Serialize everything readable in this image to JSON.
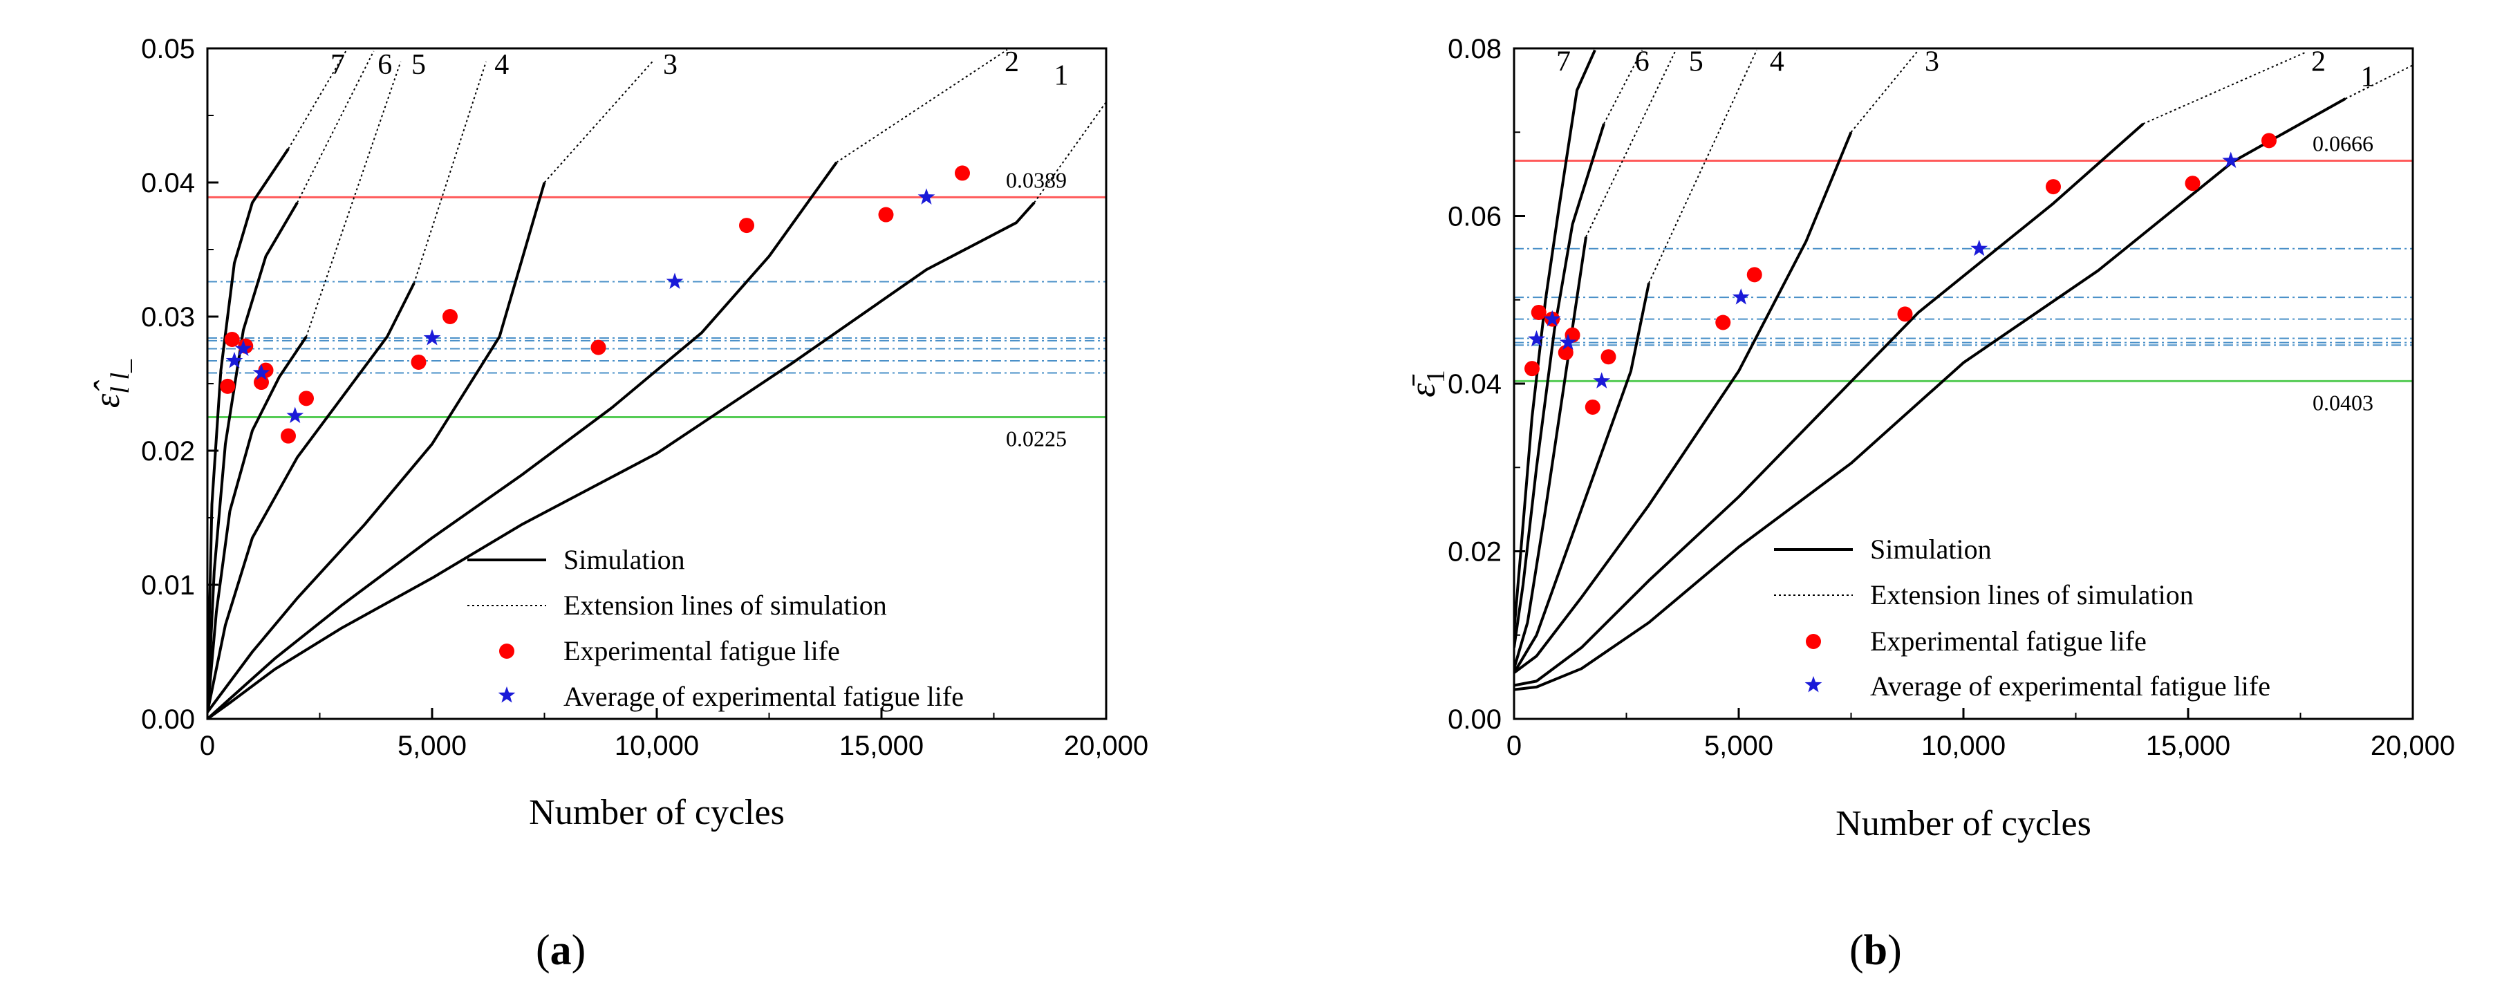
{
  "chart_data": [
    {
      "type": "line",
      "panel_label": "a",
      "xlabel": "Number of cycles",
      "ylabel_glyph": "ε̂",
      "ylabel_sub": "l l_",
      "xlim": [
        0,
        20000
      ],
      "ylim": [
        0,
        0.05
      ],
      "xticks": [
        "0",
        "5,000",
        "10,000",
        "15,000",
        "20,000"
      ],
      "yticks": [
        "0.00",
        "0.01",
        "0.02",
        "0.03",
        "0.04",
        "0.05"
      ],
      "legend": {
        "position": "bottom-right",
        "entries": [
          "Simulation",
          "Extension lines of simulation",
          "Experimental fatigue life",
          "Average of experimental fatigue life"
        ]
      },
      "ref_lines": [
        {
          "y": 0.0389,
          "label": "0.0389",
          "color": "#ff5a5a"
        },
        {
          "y": 0.0225,
          "label": "0.0225",
          "color": "#55cc55"
        }
      ],
      "avg_lines": {
        "values": [
          0.0326,
          0.0284,
          0.0282,
          0.0276,
          0.0267,
          0.0258
        ],
        "color": "#4a90c8"
      },
      "curves": [
        {
          "label": "1",
          "sim": [
            [
              0,
              0
            ],
            [
              500,
              0.0012
            ],
            [
              1500,
              0.0037
            ],
            [
              3000,
              0.0068
            ],
            [
              5000,
              0.0105
            ],
            [
              7000,
              0.0145
            ],
            [
              10000,
              0.0198
            ],
            [
              13000,
              0.0265
            ],
            [
              16000,
              0.0335
            ],
            [
              18000,
              0.037
            ],
            [
              18400,
              0.0385
            ]
          ],
          "ext": [
            [
              18400,
              0.0385
            ],
            [
              20000,
              0.046
            ]
          ],
          "label_at": [
            19000,
            0.0473
          ]
        },
        {
          "label": "2",
          "sim": [
            [
              0,
              0
            ],
            [
              500,
              0.0015
            ],
            [
              1500,
              0.0045
            ],
            [
              3000,
              0.0085
            ],
            [
              5000,
              0.0135
            ],
            [
              7000,
              0.0182
            ],
            [
              9000,
              0.0232
            ],
            [
              11000,
              0.0288
            ],
            [
              12500,
              0.0345
            ],
            [
              14000,
              0.0415
            ]
          ],
          "ext": [
            [
              14000,
              0.0415
            ],
            [
              17800,
              0.0499
            ]
          ],
          "label_at": [
            17900,
            0.0483
          ]
        },
        {
          "label": "3",
          "sim": [
            [
              0,
              0.0005
            ],
            [
              1000,
              0.005
            ],
            [
              2000,
              0.009
            ],
            [
              3500,
              0.0145
            ],
            [
              5000,
              0.0205
            ],
            [
              6500,
              0.0285
            ],
            [
              7500,
              0.04
            ]
          ],
          "ext": [
            [
              7500,
              0.04
            ],
            [
              9900,
              0.049
            ]
          ],
          "label_at": [
            10300,
            0.0481
          ]
        },
        {
          "label": "4",
          "sim": [
            [
              0,
              0.0005
            ],
            [
              400,
              0.007
            ],
            [
              1000,
              0.0135
            ],
            [
              2000,
              0.0195
            ],
            [
              3000,
              0.024
            ],
            [
              4000,
              0.0285
            ],
            [
              4600,
              0.0325
            ]
          ],
          "ext": [
            [
              4600,
              0.0325
            ],
            [
              6200,
              0.049
            ]
          ],
          "label_at": [
            6550,
            0.0481
          ]
        },
        {
          "label": "5",
          "sim": [
            [
              0,
              0.0005
            ],
            [
              200,
              0.008
            ],
            [
              500,
              0.0155
            ],
            [
              1000,
              0.0215
            ],
            [
              1600,
              0.0255
            ],
            [
              2200,
              0.0285
            ]
          ],
          "ext": [
            [
              2200,
              0.0285
            ],
            [
              4300,
              0.049
            ]
          ],
          "label_at": [
            4700,
            0.0481
          ]
        },
        {
          "label": "6",
          "sim": [
            [
              0,
              0.0005
            ],
            [
              150,
              0.011
            ],
            [
              400,
              0.0205
            ],
            [
              800,
              0.029
            ],
            [
              1300,
              0.0345
            ],
            [
              2000,
              0.0385
            ]
          ],
          "ext": [
            [
              2000,
              0.0385
            ],
            [
              3700,
              0.0498
            ]
          ],
          "label_at": [
            3950,
            0.0481
          ]
        },
        {
          "label": "7",
          "sim": [
            [
              0,
              0.001
            ],
            [
              100,
              0.016
            ],
            [
              300,
              0.026
            ],
            [
              600,
              0.034
            ],
            [
              1000,
              0.0385
            ],
            [
              1800,
              0.0425
            ]
          ],
          "ext": [
            [
              1800,
              0.0425
            ],
            [
              3100,
              0.0499
            ]
          ],
          "label_at": [
            2900,
            0.0481
          ]
        }
      ],
      "experimental": [
        [
          450,
          0.0248
        ],
        [
          550,
          0.0283
        ],
        [
          850,
          0.0278
        ],
        [
          1200,
          0.0251
        ],
        [
          1300,
          0.026
        ],
        [
          1800,
          0.0211
        ],
        [
          2200,
          0.0239
        ],
        [
          4700,
          0.0266
        ],
        [
          5400,
          0.03
        ],
        [
          8700,
          0.0277
        ],
        [
          12000,
          0.0368
        ],
        [
          15100,
          0.0376
        ],
        [
          16800,
          0.0407
        ]
      ],
      "averages": [
        [
          600,
          0.0267
        ],
        [
          800,
          0.0276
        ],
        [
          1200,
          0.0258
        ],
        [
          1950,
          0.0226
        ],
        [
          5000,
          0.0284
        ],
        [
          10400,
          0.0326
        ],
        [
          16000,
          0.0389
        ]
      ]
    },
    {
      "type": "line",
      "panel_label": "b",
      "xlabel": "Number of cycles",
      "ylabel_glyph": "ε̄",
      "ylabel_sub": "1",
      "xlim": [
        0,
        20000
      ],
      "ylim": [
        0,
        0.08
      ],
      "xticks": [
        "0",
        "5,000",
        "10,000",
        "15,000",
        "20,000"
      ],
      "yticks": [
        "0.00",
        "0.02",
        "0.04",
        "0.06",
        "0.08"
      ],
      "legend": {
        "position": "bottom-right",
        "entries": [
          "Simulation",
          "Extension lines of simulation",
          "Experimental fatigue life",
          "Average of experimental fatigue life"
        ]
      },
      "ref_lines": [
        {
          "y": 0.0666,
          "label": "0.0666",
          "color": "#ff5a5a"
        },
        {
          "y": 0.0403,
          "label": "0.0403",
          "color": "#55cc55"
        }
      ],
      "avg_lines": {
        "values": [
          0.0561,
          0.0503,
          0.0477,
          0.0454,
          0.0449,
          0.0446
        ],
        "color": "#4a90c8"
      },
      "curves": [
        {
          "label": "1",
          "sim": [
            [
              0,
              0.0035
            ],
            [
              500,
              0.0038
            ],
            [
              1500,
              0.006
            ],
            [
              3000,
              0.0115
            ],
            [
              5000,
              0.0205
            ],
            [
              7500,
              0.0305
            ],
            [
              10000,
              0.0425
            ],
            [
              13000,
              0.0535
            ],
            [
              16000,
              0.0665
            ],
            [
              18500,
              0.074
            ]
          ],
          "ext": [
            [
              18500,
              0.074
            ],
            [
              20000,
              0.078
            ]
          ],
          "label_at": [
            19000,
            0.0755
          ]
        },
        {
          "label": "2",
          "sim": [
            [
              0,
              0.004
            ],
            [
              500,
              0.0045
            ],
            [
              1500,
              0.0085
            ],
            [
              3000,
              0.0165
            ],
            [
              5000,
              0.0265
            ],
            [
              7000,
              0.0375
            ],
            [
              9000,
              0.0485
            ],
            [
              12000,
              0.0615
            ],
            [
              14000,
              0.071
            ]
          ],
          "ext": [
            [
              14000,
              0.071
            ],
            [
              17600,
              0.0795
            ]
          ],
          "label_at": [
            17900,
            0.0773
          ]
        },
        {
          "label": "3",
          "sim": [
            [
              0,
              0.0055
            ],
            [
              500,
              0.0075
            ],
            [
              1500,
              0.0145
            ],
            [
              3000,
              0.0255
            ],
            [
              5000,
              0.0415
            ],
            [
              6500,
              0.057
            ],
            [
              7500,
              0.07
            ]
          ],
          "ext": [
            [
              7500,
              0.07
            ],
            [
              9000,
              0.0798
            ]
          ],
          "label_at": [
            9300,
            0.0773
          ]
        },
        {
          "label": "4",
          "sim": [
            [
              0,
              0.0055
            ],
            [
              500,
              0.01
            ],
            [
              1000,
              0.0175
            ],
            [
              1800,
              0.0295
            ],
            [
              2600,
              0.0415
            ],
            [
              3000,
              0.052
            ]
          ],
          "ext": [
            [
              3000,
              0.052
            ],
            [
              5400,
              0.0798
            ]
          ],
          "label_at": [
            5850,
            0.0773
          ]
        },
        {
          "label": "5",
          "sim": [
            [
              0,
              0.006
            ],
            [
              300,
              0.0115
            ],
            [
              700,
              0.025
            ],
            [
              1200,
              0.043
            ],
            [
              1600,
              0.0575
            ]
          ],
          "ext": [
            [
              1600,
              0.0575
            ],
            [
              3600,
              0.0798
            ]
          ],
          "label_at": [
            4050,
            0.0773
          ]
        },
        {
          "label": "6",
          "sim": [
            [
              0,
              0.0085
            ],
            [
              200,
              0.016
            ],
            [
              500,
              0.03
            ],
            [
              900,
              0.0465
            ],
            [
              1300,
              0.059
            ],
            [
              2000,
              0.071
            ]
          ],
          "ext": [
            [
              2000,
              0.071
            ],
            [
              2850,
              0.0798
            ]
          ],
          "label_at": [
            2850,
            0.0773
          ]
        },
        {
          "label": "7",
          "sim": [
            [
              0,
              0.0105
            ],
            [
              150,
              0.02
            ],
            [
              400,
              0.036
            ],
            [
              700,
              0.05
            ],
            [
              1000,
              0.061
            ],
            [
              1400,
              0.075
            ],
            [
              1800,
              0.0798
            ]
          ],
          "ext": [],
          "label_at": [
            1100,
            0.0773
          ]
        }
      ],
      "experimental": [
        [
          400,
          0.0418
        ],
        [
          550,
          0.0485
        ],
        [
          850,
          0.0477
        ],
        [
          1150,
          0.0437
        ],
        [
          1300,
          0.0458
        ],
        [
          1750,
          0.0372
        ],
        [
          2100,
          0.0432
        ],
        [
          4650,
          0.0473
        ],
        [
          5350,
          0.053
        ],
        [
          8700,
          0.0483
        ],
        [
          12000,
          0.0635
        ],
        [
          15100,
          0.0639
        ],
        [
          16800,
          0.069
        ]
      ],
      "averages": [
        [
          500,
          0.0453
        ],
        [
          850,
          0.0477
        ],
        [
          1200,
          0.0449
        ],
        [
          1950,
          0.0403
        ],
        [
          5050,
          0.0503
        ],
        [
          10350,
          0.0561
        ],
        [
          15950,
          0.0666
        ]
      ]
    }
  ]
}
